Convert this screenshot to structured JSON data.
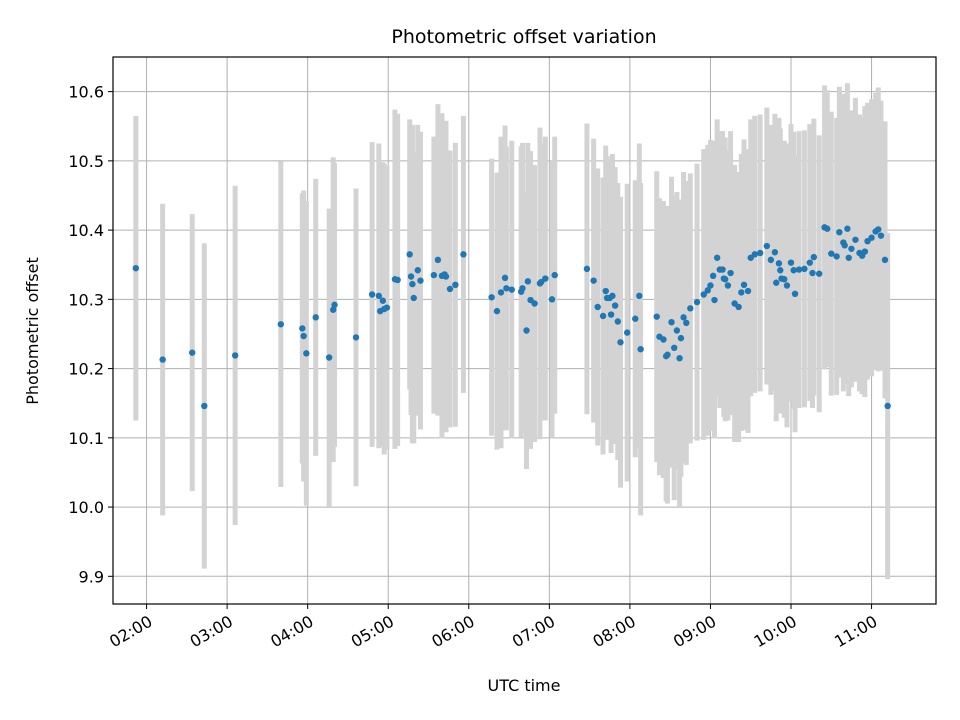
{
  "chart_data": {
    "type": "scatter",
    "title": "Photometric offset variation",
    "xlabel": "UTC time",
    "ylabel": "Photometric offset",
    "grid": true,
    "legend": "none",
    "xlim": [
      "01:35",
      "11:48"
    ],
    "ylim": [
      9.86,
      10.65
    ],
    "x_ticks": [
      "02:00",
      "03:00",
      "04:00",
      "05:00",
      "06:00",
      "07:00",
      "08:00",
      "09:00",
      "10:00",
      "11:00"
    ],
    "y_ticks": [
      "9.9",
      "10.0",
      "10.1",
      "10.2",
      "10.3",
      "10.4",
      "10.5",
      "10.6"
    ],
    "colors": {
      "points": "#1f77b4",
      "errorbars": "#d3d3d3",
      "grid": "#b0b0b0"
    },
    "series": [
      {
        "x": [
          "01:52",
          "02:12",
          "02:34",
          "02:43",
          "03:06",
          "03:40",
          "03:56",
          "03:57",
          "03:59",
          "04:06",
          "04:16",
          "04:19",
          "04:20",
          "04:36",
          "04:48",
          "04:53",
          "04:54",
          "04:56",
          "04:57",
          "04:59",
          "05:05",
          "05:07",
          "05:16",
          "05:17",
          "05:18",
          "05:19",
          "05:22",
          "05:24",
          "05:34",
          "05:37",
          "05:40",
          "05:42",
          "05:43",
          "05:46",
          "05:50",
          "05:56",
          "06:17",
          "06:21",
          "06:24",
          "06:27",
          "06:28",
          "06:32",
          "06:39",
          "06:40",
          "06:43",
          "06:44",
          "06:46",
          "06:49",
          "06:53",
          "06:54",
          "06:57",
          "07:02",
          "07:04",
          "07:28",
          "07:33",
          "07:36",
          "07:40",
          "07:42",
          "07:43",
          "07:45",
          "07:46",
          "07:47",
          "07:49",
          "07:51",
          "07:53",
          "07:58",
          "08:04",
          "08:07",
          "08:08",
          "08:20",
          "08:22",
          "08:25",
          "08:27",
          "08:28",
          "08:31",
          "08:33",
          "08:35",
          "08:37",
          "08:38",
          "08:40",
          "08:42",
          "08:45",
          "08:50",
          "08:55",
          "08:58",
          "09:00",
          "09:02",
          "09:03",
          "09:05",
          "09:07",
          "09:09",
          "09:10",
          "09:11",
          "09:13",
          "09:15",
          "09:18",
          "09:21",
          "09:23",
          "09:25",
          "09:28",
          "09:30",
          "09:33",
          "09:37",
          "09:42",
          "09:45",
          "09:48",
          "09:49",
          "09:51",
          "09:52",
          "09:53",
          "09:55",
          "09:57",
          "10:00",
          "10:02",
          "10:03",
          "10:06",
          "10:10",
          "10:14",
          "10:16",
          "10:17",
          "10:21",
          "10:25",
          "10:27",
          "10:30",
          "10:34",
          "10:36",
          "10:39",
          "10:40",
          "10:42",
          "10:43",
          "10:45",
          "10:48",
          "10:51",
          "10:53",
          "10:55",
          "10:57",
          "11:00",
          "11:03",
          "11:05",
          "11:07",
          "11:10"
        ],
        "y": [
          10.345,
          10.213,
          10.223,
          10.146,
          10.219,
          10.264,
          10.258,
          10.247,
          10.222,
          10.274,
          10.216,
          10.285,
          10.292,
          10.245,
          10.307,
          10.305,
          10.283,
          10.298,
          10.286,
          10.288,
          10.329,
          10.328,
          10.365,
          10.333,
          10.322,
          10.302,
          10.342,
          10.327,
          10.335,
          10.357,
          10.334,
          10.336,
          10.333,
          10.315,
          10.321,
          10.365,
          10.303,
          10.283,
          10.31,
          10.331,
          10.316,
          10.314,
          10.311,
          10.316,
          10.255,
          10.326,
          10.299,
          10.294,
          10.323,
          10.325,
          10.33,
          10.3,
          10.335,
          10.344,
          10.327,
          10.289,
          10.276,
          10.312,
          10.302,
          10.302,
          10.278,
          10.305,
          10.291,
          10.268,
          10.238,
          10.252,
          10.272,
          10.305,
          10.228,
          10.275,
          10.246,
          10.242,
          10.218,
          10.22,
          10.267,
          10.23,
          10.255,
          10.215,
          10.244,
          10.274,
          10.266,
          10.287,
          10.296,
          10.307,
          10.313,
          10.32,
          10.334,
          10.299,
          10.36,
          10.343,
          10.343,
          10.33,
          10.329,
          10.32,
          10.338,
          10.294,
          10.289,
          10.31,
          10.321,
          10.312,
          10.36,
          10.365,
          10.367,
          10.377,
          10.357,
          10.368,
          10.324,
          10.352,
          10.342,
          10.33,
          10.329,
          10.32,
          10.353,
          10.342,
          10.308,
          10.343,
          10.344,
          10.353,
          10.338,
          10.361,
          10.337,
          10.404,
          10.402,
          10.366,
          10.362,
          10.397,
          10.382,
          10.378,
          10.402,
          10.36,
          10.373,
          10.386,
          10.367,
          10.363,
          10.369,
          10.384,
          10.389,
          10.398,
          10.401,
          10.392,
          10.357
        ],
        "err": [
          0.22,
          0.225,
          0.2,
          0.235,
          0.245,
          0.235,
          0.195,
          0.21,
          0.22,
          0.2,
          0.215,
          0.22,
          0.205,
          0.215,
          0.22,
          0.22,
          0.195,
          0.2,
          0.21,
          0.205,
          0.245,
          0.24,
          0.195,
          0.2,
          0.23,
          0.21,
          0.21,
          0.215,
          0.2,
          0.225,
          0.235,
          0.22,
          0.225,
          0.2,
          0.205,
          0.2,
          0.2,
          0.2,
          0.225,
          0.22,
          0.205,
          0.215,
          0.21,
          0.21,
          0.2,
          0.2,
          0.215,
          0.2,
          0.225,
          0.2,
          0.205,
          0.2,
          0.2,
          0.21,
          0.205,
          0.2,
          0.2,
          0.21,
          0.205,
          0.2,
          0.2,
          0.205,
          0.2,
          0.2,
          0.21,
          0.215,
          0.2,
          0.22,
          0.24,
          0.21,
          0.2,
          0.2,
          0.21,
          0.215,
          0.21,
          0.22,
          0.2,
          0.215,
          0.2,
          0.21,
          0.205,
          0.195,
          0.2,
          0.21,
          0.21,
          0.21,
          0.195,
          0.2,
          0.2,
          0.2,
          0.2,
          0.2,
          0.205,
          0.195,
          0.205,
          0.2,
          0.195,
          0.2,
          0.21,
          0.205,
          0.2,
          0.2,
          0.2,
          0.2,
          0.195,
          0.2,
          0.2,
          0.21,
          0.205,
          0.195,
          0.2,
          0.205,
          0.2,
          0.2,
          0.2,
          0.2,
          0.2,
          0.2,
          0.195,
          0.2,
          0.2,
          0.205,
          0.2,
          0.205,
          0.2,
          0.21,
          0.215,
          0.2,
          0.21,
          0.2,
          0.2,
          0.205,
          0.2,
          0.2,
          0.21,
          0.2,
          0.2,
          0.2,
          0.205,
          0.195,
          0.2
        ]
      },
      {
        "x": [
          "11:12"
        ],
        "y": [
          10.146
        ],
        "err": [
          0.25
        ]
      }
    ]
  }
}
